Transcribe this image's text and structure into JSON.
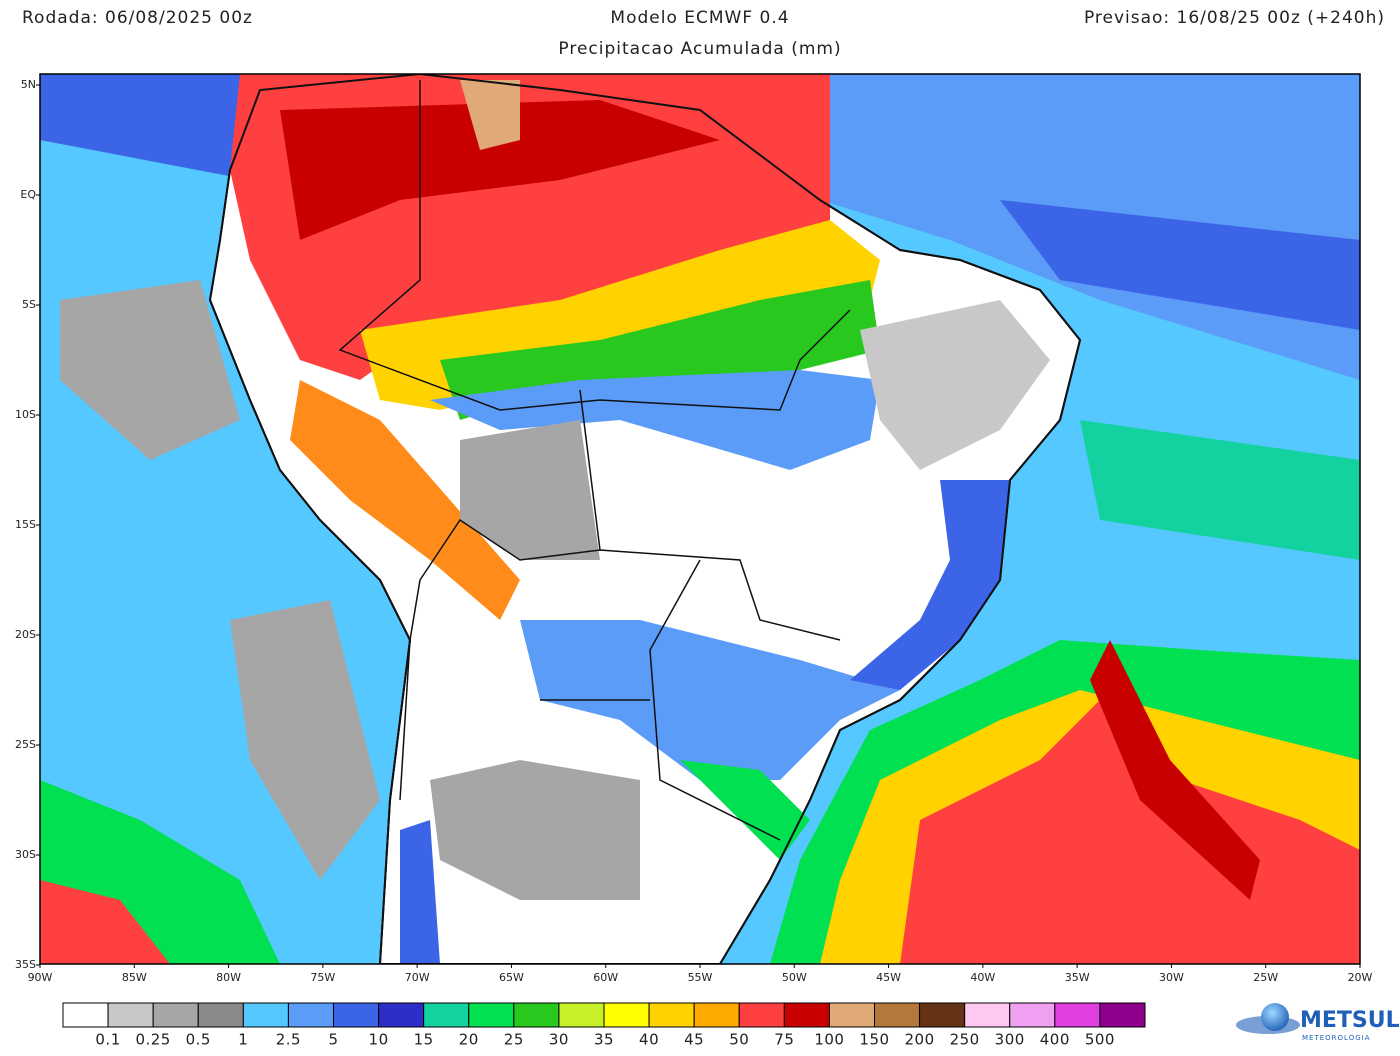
{
  "header": {
    "run": "Rodada: 06/08/2025 00z",
    "model": "Modelo ECMWF 0.4",
    "subtitle": "Precipitacao Acumulada (mm)",
    "forecast": "Previsao: 16/08/25 00z (+240h)"
  },
  "map": {
    "lat_labels": [
      "5N",
      "EQ",
      "5S",
      "10S",
      "15S",
      "20S",
      "25S",
      "30S",
      "35S"
    ],
    "lon_labels": [
      "90W",
      "85W",
      "80W",
      "75W",
      "70W",
      "65W",
      "60W",
      "55W",
      "50W",
      "45W",
      "40W",
      "35W",
      "30W",
      "25W",
      "20W"
    ]
  },
  "legend": {
    "colors": [
      "#ffffff",
      "#c8c8c8",
      "#a6a6a6",
      "#8a8a8a",
      "#55c8ff",
      "#5a9cf8",
      "#3c64e6",
      "#2d2dc8",
      "#14d2a0",
      "#00e050",
      "#28c81e",
      "#c8f028",
      "#ffff00",
      "#ffd200",
      "#ffaa00",
      "#ff4040",
      "#c80000",
      "#e0aa78",
      "#b4783c",
      "#643214",
      "#ffc8f0",
      "#f0a0f0",
      "#e040e0",
      "#8c008c"
    ],
    "labels": [
      "0.1",
      "0.25",
      "0.5",
      "1",
      "2.5",
      "5",
      "10",
      "15",
      "20",
      "25",
      "30",
      "35",
      "40",
      "45",
      "50",
      "75",
      "100",
      "150",
      "200",
      "250",
      "300",
      "400",
      "500"
    ]
  },
  "logo": {
    "name": "METSUL",
    "tagline": "METEOROLOGIA"
  }
}
